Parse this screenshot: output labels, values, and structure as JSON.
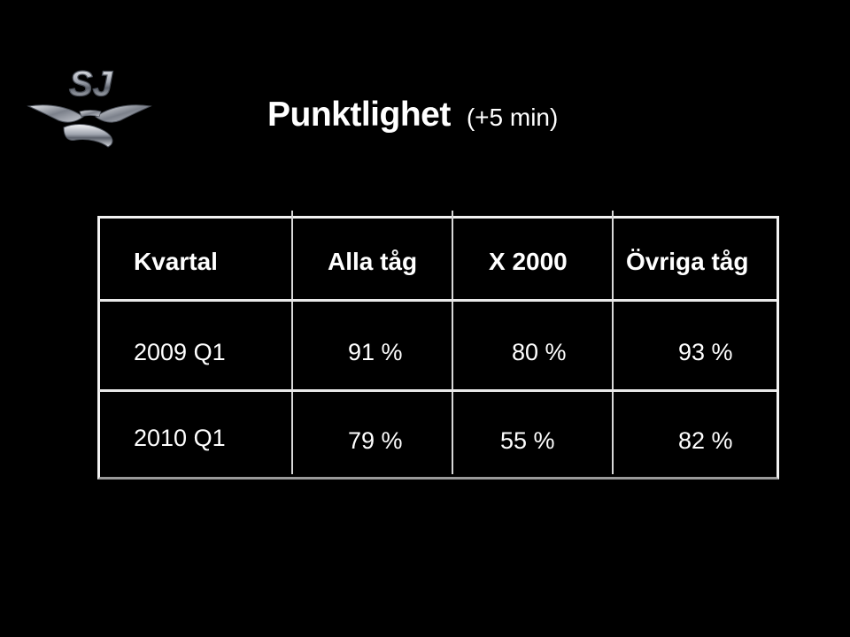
{
  "header": {
    "logo_text": "SJ",
    "title": "Punktlighet",
    "subtitle": "(+5 min)"
  },
  "table": {
    "columns": [
      "Kvartal",
      "Alla tåg",
      "X 2000",
      "Övriga tåg"
    ],
    "rows": [
      [
        "2009 Q1",
        "91 %",
        "80 %",
        "93 %"
      ],
      [
        "2010 Q1",
        "79 %",
        "55 %",
        "82 %"
      ]
    ]
  },
  "colors": {
    "background": "#000000",
    "text": "#ffffff",
    "grid": "#e8e8e8",
    "logo_silver": "#c9ccd3"
  }
}
